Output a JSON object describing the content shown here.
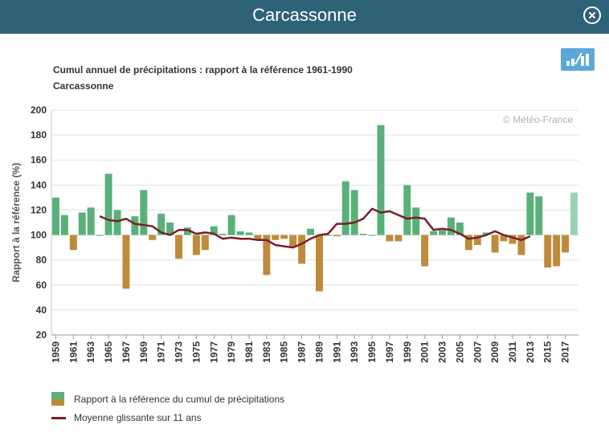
{
  "header": {
    "title": "Carcassonne"
  },
  "icons": {
    "close": "close-circle-icon",
    "chart_toggle": "bar-line-chart-icon"
  },
  "watermark": "© Météo-France",
  "colors": {
    "header": "#2e6277",
    "positive": "#59b179",
    "negative": "#be8b3b",
    "last_bar": "#9ad3b2",
    "line": "#7a1f2a",
    "icon_button": "#5aa8d8"
  },
  "chart_data": {
    "type": "bar",
    "title": "Cumul annuel de précipitations : rapport à la référence 1961-1990",
    "subtitle": "Carcassonne",
    "ylabel": "Rapport à la référence (%)",
    "xlabel": "",
    "ylim": [
      20,
      200
    ],
    "yticks": [
      20,
      40,
      60,
      80,
      100,
      120,
      140,
      160,
      180,
      200
    ],
    "baseline": 100,
    "grid": true,
    "legend_position": "bottom-left",
    "x_tick_labels": [
      "1959",
      "1961",
      "1963",
      "1965",
      "1967",
      "1969",
      "1971",
      "1973",
      "1975",
      "1977",
      "1979",
      "1981",
      "1983",
      "1985",
      "1987",
      "1989",
      "1991",
      "1993",
      "1995",
      "1997",
      "1999",
      "2001",
      "2003",
      "2005",
      "2007",
      "2009",
      "2011",
      "2013",
      "2015",
      "2017"
    ],
    "series": [
      {
        "name": "Rapport à la référence du cumul de précipitations",
        "kind": "bar",
        "x": [
          1959,
          1960,
          1961,
          1962,
          1963,
          1964,
          1965,
          1966,
          1967,
          1968,
          1969,
          1970,
          1971,
          1972,
          1973,
          1974,
          1975,
          1976,
          1977,
          1978,
          1979,
          1980,
          1981,
          1982,
          1983,
          1984,
          1985,
          1986,
          1987,
          1988,
          1989,
          1990,
          1991,
          1992,
          1993,
          1994,
          1995,
          1996,
          1997,
          1998,
          1999,
          2000,
          2001,
          2002,
          2003,
          2004,
          2005,
          2006,
          2007,
          2008,
          2009,
          2010,
          2011,
          2012,
          2013,
          2014,
          2015,
          2016,
          2017,
          2018
        ],
        "values": [
          130,
          116,
          88,
          118,
          122,
          100,
          149,
          120,
          57,
          115,
          136,
          96,
          117,
          110,
          81,
          106,
          84,
          88,
          107,
          101,
          116,
          103,
          102,
          96,
          68,
          96,
          97,
          90,
          77,
          105,
          55,
          100,
          99,
          143,
          136,
          101,
          100,
          188,
          95,
          95,
          140,
          122,
          75,
          103,
          104,
          114,
          110,
          88,
          92,
          102,
          86,
          95,
          93,
          84,
          134,
          131,
          74,
          75,
          86,
          134
        ]
      },
      {
        "name": "Moyenne glissante sur 11 ans",
        "kind": "line",
        "x": [
          1964,
          1965,
          1966,
          1967,
          1968,
          1969,
          1970,
          1971,
          1972,
          1973,
          1974,
          1975,
          1976,
          1977,
          1978,
          1979,
          1980,
          1981,
          1982,
          1983,
          1984,
          1985,
          1986,
          1987,
          1988,
          1989,
          1990,
          1991,
          1992,
          1993,
          1994,
          1995,
          1996,
          1997,
          1998,
          1999,
          2000,
          2001,
          2002,
          2003,
          2004,
          2005,
          2006,
          2007,
          2008,
          2009,
          2010,
          2011,
          2012,
          2013
        ],
        "values": [
          115,
          112,
          111,
          113,
          109,
          108,
          107,
          102,
          100,
          104,
          104,
          101,
          102,
          101,
          97,
          98,
          97,
          97,
          96,
          96,
          92,
          91,
          90,
          93,
          97,
          100,
          101,
          109,
          109,
          110,
          113,
          121,
          118,
          119,
          116,
          113,
          114,
          113,
          104,
          105,
          104,
          101,
          97,
          98,
          100,
          103,
          100,
          98,
          96,
          99
        ]
      }
    ]
  }
}
